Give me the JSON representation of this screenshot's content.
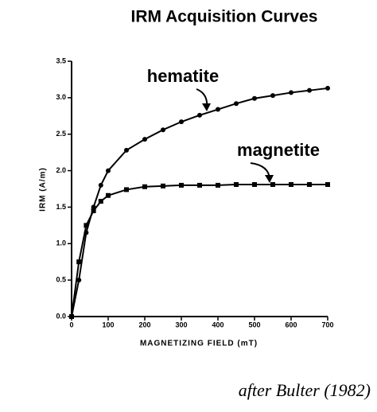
{
  "chart_data": {
    "type": "line",
    "title": "IRM Acquisition Curves",
    "xlabel": "MAGNETIZING FIELD (mT)",
    "ylabel": "IRM (A/m)",
    "xlim": [
      0,
      700
    ],
    "ylim": [
      0,
      3.5
    ],
    "xticks": [
      0,
      100,
      200,
      300,
      400,
      500,
      600,
      700
    ],
    "yticks": [
      {
        "value": 0,
        "label": "0.0"
      },
      0.5,
      {
        "value": 1,
        "label": "1.0"
      },
      1.5,
      {
        "value": 2,
        "label": "2.0"
      },
      2.5,
      {
        "value": 3,
        "label": "3.0"
      },
      3.5
    ],
    "series": [
      {
        "name": "hematite",
        "color": "#000000",
        "marker": "circle",
        "x": [
          0,
          20,
          40,
          60,
          80,
          100,
          150,
          200,
          250,
          300,
          350,
          400,
          450,
          500,
          550,
          600,
          650,
          700
        ],
        "values": [
          0,
          0.5,
          1.15,
          1.5,
          1.8,
          2.0,
          2.28,
          2.43,
          2.56,
          2.67,
          2.76,
          2.84,
          2.92,
          2.99,
          3.03,
          3.07,
          3.1,
          3.13
        ]
      },
      {
        "name": "magnetite",
        "color": "#000000",
        "marker": "square",
        "x": [
          0,
          20,
          40,
          60,
          80,
          100,
          150,
          200,
          250,
          300,
          350,
          400,
          450,
          500,
          550,
          600,
          650,
          700
        ],
        "values": [
          0,
          0.75,
          1.25,
          1.45,
          1.58,
          1.66,
          1.74,
          1.78,
          1.79,
          1.8,
          1.8,
          1.8,
          1.81,
          1.81,
          1.81,
          1.81,
          1.81,
          1.81
        ]
      }
    ],
    "credit": "after Bulter (1982)"
  }
}
